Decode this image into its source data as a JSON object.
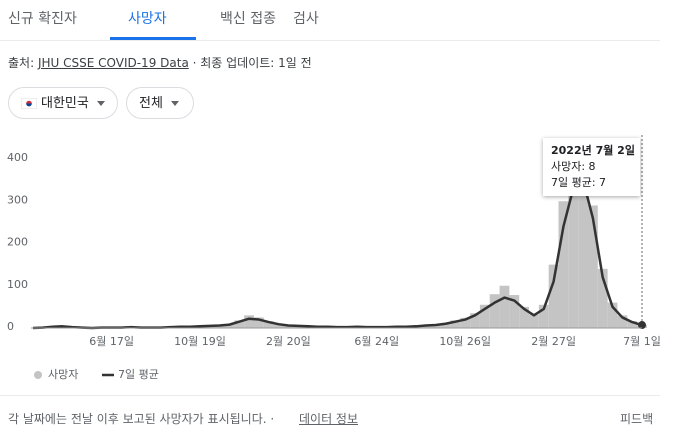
{
  "tabs": [
    "신규 확진자",
    "사망자",
    "백신 접종",
    "검사"
  ],
  "source": {
    "label": "출처:",
    "link": "JHU CSSE COVID-19 Data",
    "updated": " · 최종 업데이트: 1일 전"
  },
  "filters": [
    "대한민국",
    "전체"
  ],
  "tooltip": {
    "date": "2022년 7월 2일",
    "lines": [
      "사망자: 8",
      "7일 평균: 7"
    ]
  },
  "footer": {
    "note": "각 날짜에는 전날 이후 보고된 사망자가 표시됩니다.  ·",
    "info": "데이터 정보",
    "feedback": "피드백"
  },
  "chart_data": {
    "type": "bar",
    "categories": [
      null,
      null,
      null,
      null,
      null,
      null,
      null,
      null,
      "6월 17일",
      null,
      null,
      null,
      null,
      null,
      null,
      null,
      null,
      "10월 19일",
      null,
      null,
      null,
      null,
      null,
      null,
      null,
      null,
      "2월 20일",
      null,
      null,
      null,
      null,
      null,
      null,
      null,
      null,
      "6월 24일",
      null,
      null,
      null,
      null,
      null,
      null,
      null,
      null,
      "10월 26일",
      null,
      null,
      null,
      null,
      null,
      null,
      null,
      null,
      "2월 27일",
      null,
      null,
      null,
      null,
      null,
      null,
      null,
      null,
      "7월 1일"
    ],
    "series": [
      {
        "name": "사망자",
        "type": "bar",
        "color": "#c4c4c4",
        "values": [
          0,
          2,
          4,
          5,
          3,
          1,
          0,
          1,
          1,
          2,
          2,
          1,
          1,
          2,
          2,
          3,
          4,
          5,
          6,
          7,
          9,
          18,
          30,
          25,
          16,
          10,
          7,
          5,
          4,
          3,
          3,
          2,
          3,
          3,
          2,
          2,
          3,
          3,
          4,
          5,
          7,
          8,
          12,
          18,
          24,
          35,
          55,
          80,
          100,
          78,
          50,
          32,
          55,
          150,
          300,
          400,
          380,
          290,
          140,
          60,
          30,
          16,
          8
        ]
      },
      {
        "name": "7일 평균",
        "type": "line",
        "color": "#333333",
        "values": [
          0,
          1,
          3,
          4,
          2,
          1,
          0,
          1,
          1,
          1,
          2,
          1,
          1,
          1,
          2,
          3,
          3,
          4,
          5,
          6,
          8,
          15,
          22,
          20,
          14,
          9,
          6,
          5,
          4,
          3,
          3,
          2,
          2,
          3,
          2,
          2,
          2,
          3,
          3,
          4,
          6,
          7,
          10,
          15,
          20,
          30,
          45,
          60,
          72,
          65,
          45,
          30,
          45,
          110,
          240,
          330,
          350,
          260,
          120,
          50,
          25,
          14,
          7
        ]
      }
    ],
    "ylim": [
      0,
      400
    ],
    "yticks": [
      0,
      100,
      200,
      300,
      400
    ],
    "grid": false
  }
}
